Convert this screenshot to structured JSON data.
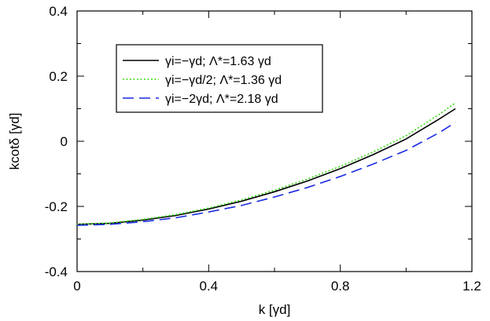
{
  "chart_data": {
    "type": "line",
    "xlabel": "k [γd]",
    "ylabel": "kcotδ [γd]",
    "xlim": [
      0,
      1.2
    ],
    "ylim": [
      -0.4,
      0.4
    ],
    "xticks": [
      "0",
      "0.4",
      "0.8",
      "1.2"
    ],
    "yticks": [
      "-0.4",
      "-0.2",
      "0",
      "0.2",
      "0.4"
    ],
    "grid": false,
    "legend_position": "top-center",
    "series": [
      {
        "name": "γi=−γd; Λ*=1.63 γd",
        "color": "#000000",
        "dash": "solid",
        "x": [
          0,
          0.1,
          0.2,
          0.3,
          0.4,
          0.5,
          0.6,
          0.7,
          0.8,
          0.9,
          1.0,
          1.1,
          1.15
        ],
        "y": [
          -0.255,
          -0.252,
          -0.242,
          -0.228,
          -0.208,
          -0.184,
          -0.155,
          -0.122,
          -0.084,
          -0.041,
          0.007,
          0.068,
          0.1
        ]
      },
      {
        "name": "γi=−γd/2; Λ*=1.36 γd",
        "color": "#33dd11",
        "dash": "dotted",
        "x": [
          0,
          0.1,
          0.2,
          0.3,
          0.4,
          0.5,
          0.6,
          0.7,
          0.8,
          0.9,
          1.0,
          1.1,
          1.15
        ],
        "y": [
          -0.255,
          -0.251,
          -0.24,
          -0.225,
          -0.205,
          -0.18,
          -0.15,
          -0.116,
          -0.077,
          -0.033,
          0.017,
          0.082,
          0.118
        ]
      },
      {
        "name": "γi=−2γd; Λ*=2.18 γd",
        "color": "#1a2ce0",
        "dash": "dashed",
        "x": [
          0,
          0.1,
          0.2,
          0.3,
          0.4,
          0.5,
          0.6,
          0.7,
          0.8,
          0.9,
          1.0,
          1.1,
          1.15
        ],
        "y": [
          -0.258,
          -0.255,
          -0.247,
          -0.235,
          -0.217,
          -0.197,
          -0.171,
          -0.142,
          -0.108,
          -0.07,
          -0.028,
          0.026,
          0.058
        ]
      }
    ]
  }
}
